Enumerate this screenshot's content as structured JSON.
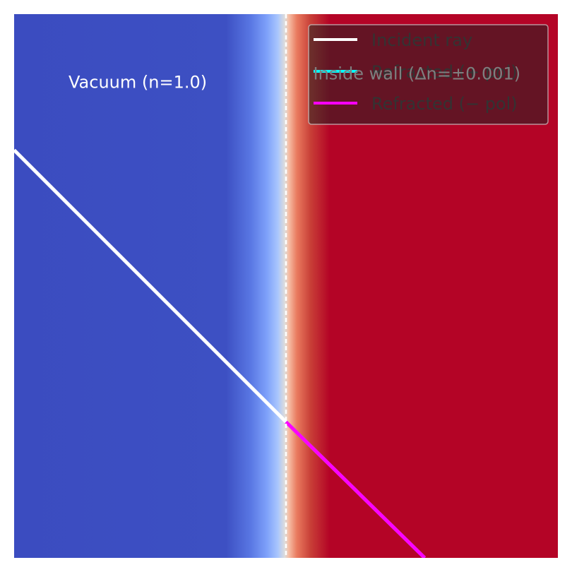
{
  "chart_data": {
    "type": "line",
    "title": "",
    "xlabel": "",
    "ylabel": "",
    "axes_visible": false,
    "xlim": [
      -1,
      1
    ],
    "ylim": [
      -1,
      1
    ],
    "wall_x": 0,
    "background": {
      "description_colormap": "coolwarm",
      "left_color": "#3b4cc0",
      "right_color": "#b40426",
      "transition": [
        {
          "x": -1.0,
          "color": "#3b4cc0"
        },
        {
          "x": -0.22,
          "color": "#3d50c3"
        },
        {
          "x": -0.13,
          "color": "#5977e3"
        },
        {
          "x": -0.07,
          "color": "#7ea1fa"
        },
        {
          "x": -0.03,
          "color": "#a9c6fd"
        },
        {
          "x": -0.005,
          "color": "#dddcdc"
        },
        {
          "x": 0.01,
          "color": "#f6bfa6"
        },
        {
          "x": 0.04,
          "color": "#e97a5f"
        },
        {
          "x": 0.09,
          "color": "#c83f37"
        },
        {
          "x": 0.16,
          "color": "#b40426"
        },
        {
          "x": 1.0,
          "color": "#b40426"
        }
      ]
    },
    "series": [
      {
        "name": "Incident ray",
        "color": "#ffffff",
        "x": [
          -1.0,
          0.0
        ],
        "y": [
          0.5,
          -0.5
        ]
      },
      {
        "name": "Refracted (+ pol)",
        "color": "#00ffff",
        "x": [
          0.0,
          0.51
        ],
        "y": [
          -0.5,
          -1.0
        ]
      },
      {
        "name": "Refracted (− pol)",
        "color": "#ff00ff",
        "x": [
          0.0,
          0.51
        ],
        "y": [
          -0.5,
          -1.0
        ]
      }
    ],
    "legend": {
      "placement": "upper right",
      "entries": [
        "Incident ray",
        "Refracted (+ pol)",
        "Refracted (− pol)"
      ]
    },
    "annotations": [
      {
        "text": "Vacuum (n=1.0)",
        "x": -0.8,
        "y": 0.75,
        "color": "#ffffff"
      },
      {
        "text": "Inside wall (Δn=±0.001)",
        "x": 0.1,
        "y": 0.78,
        "color": "#7f7f7f"
      }
    ]
  }
}
